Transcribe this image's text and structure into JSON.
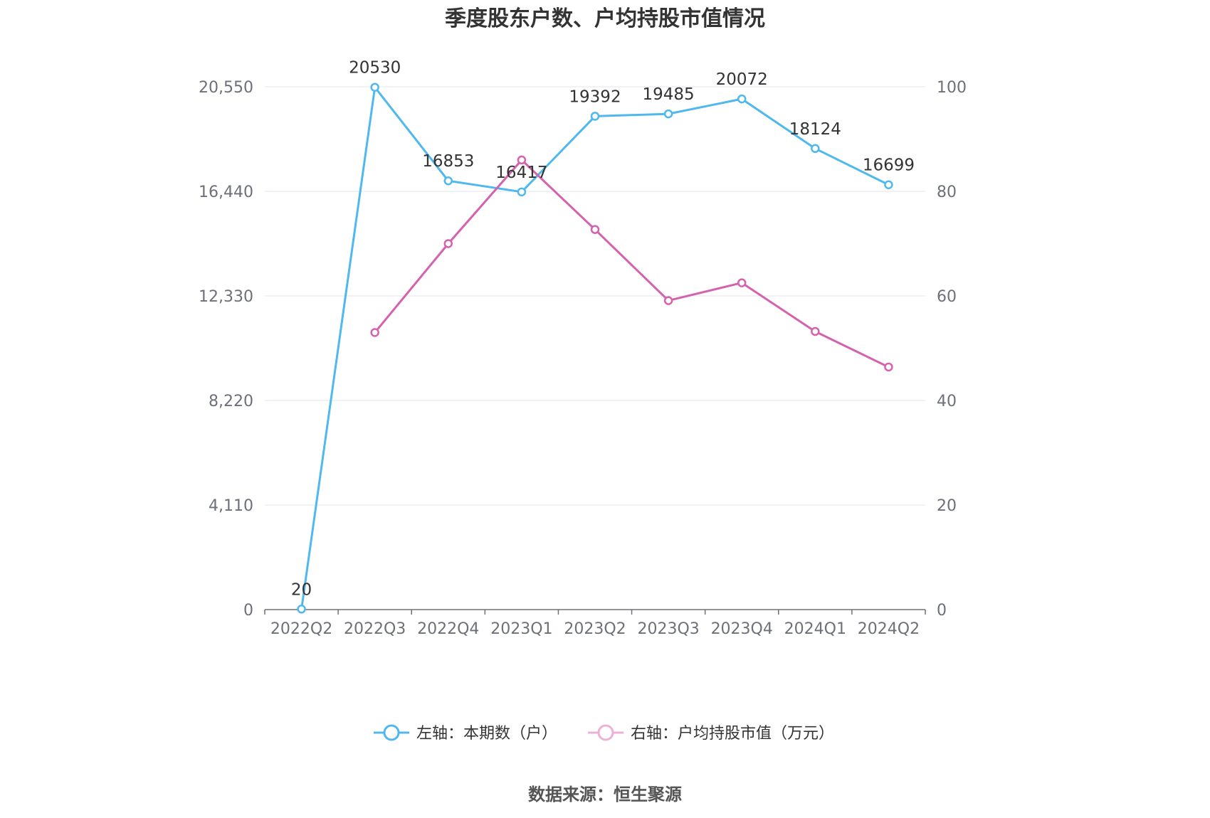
{
  "chart_data": {
    "type": "line",
    "title": "季度股东户数、户均持股市值情况",
    "categories": [
      "2022Q2",
      "2022Q3",
      "2022Q4",
      "2023Q1",
      "2023Q2",
      "2023Q3",
      "2023Q4",
      "2024Q1",
      "2024Q2"
    ],
    "left_axis": {
      "ticks": [
        "0",
        "4,110",
        "8,220",
        "12,330",
        "16,440",
        "20,550"
      ],
      "ylim": [
        0,
        20550
      ]
    },
    "right_axis": {
      "ticks": [
        "0",
        "20",
        "40",
        "60",
        "80",
        "100"
      ],
      "ylim": [
        0,
        100
      ]
    },
    "series": [
      {
        "name": "左轴：本期数（户）",
        "axis": "left",
        "color": "#4fb8ee",
        "values": [
          20,
          20530,
          16853,
          16417,
          19392,
          19485,
          20072,
          18124,
          16699
        ],
        "labels": [
          "20",
          "20530",
          "16853",
          "16417",
          "19392",
          "19485",
          "20072",
          "18124",
          "16699"
        ]
      },
      {
        "name": "右轴：户均持股市值（万元）",
        "axis": "right",
        "color": "#d462ad",
        "values": [
          null,
          53.0,
          70.0,
          86.0,
          72.7,
          59.1,
          62.5,
          53.2,
          46.4
        ]
      }
    ],
    "grid": true,
    "legend": "bottom"
  },
  "source": "数据来源：恒生聚源"
}
